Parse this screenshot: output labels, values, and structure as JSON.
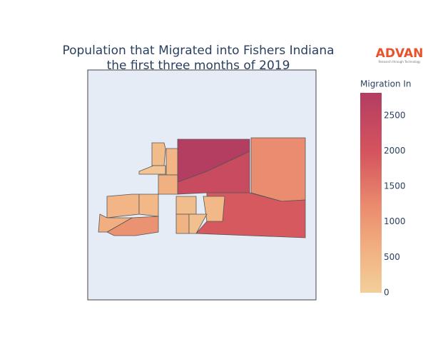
{
  "chart_data": {
    "type": "choropleth",
    "title": [
      "Population that Migrated into Fishers Indiana",
      "the first three months of 2019"
    ],
    "logo": {
      "name": "ADVAN",
      "tagline": "Research through Technology"
    },
    "colorbar_title": "Migration In",
    "values": [
      2800,
      2300,
      1200,
      1900,
      1100,
      400,
      200,
      500,
      600,
      500,
      650,
      450,
      350,
      550,
      450,
      300
    ],
    "zlim": [
      0,
      2820
    ],
    "zticks": [
      0,
      500,
      1000,
      1500,
      2000,
      2500
    ],
    "colorscale": [
      [
        0,
        "#f3cf9a"
      ],
      [
        0.25,
        "#f1ab7e"
      ],
      [
        0.45,
        "#e9886d"
      ],
      [
        0.7,
        "#d5545e"
      ],
      [
        1,
        "#b33d62"
      ]
    ]
  }
}
